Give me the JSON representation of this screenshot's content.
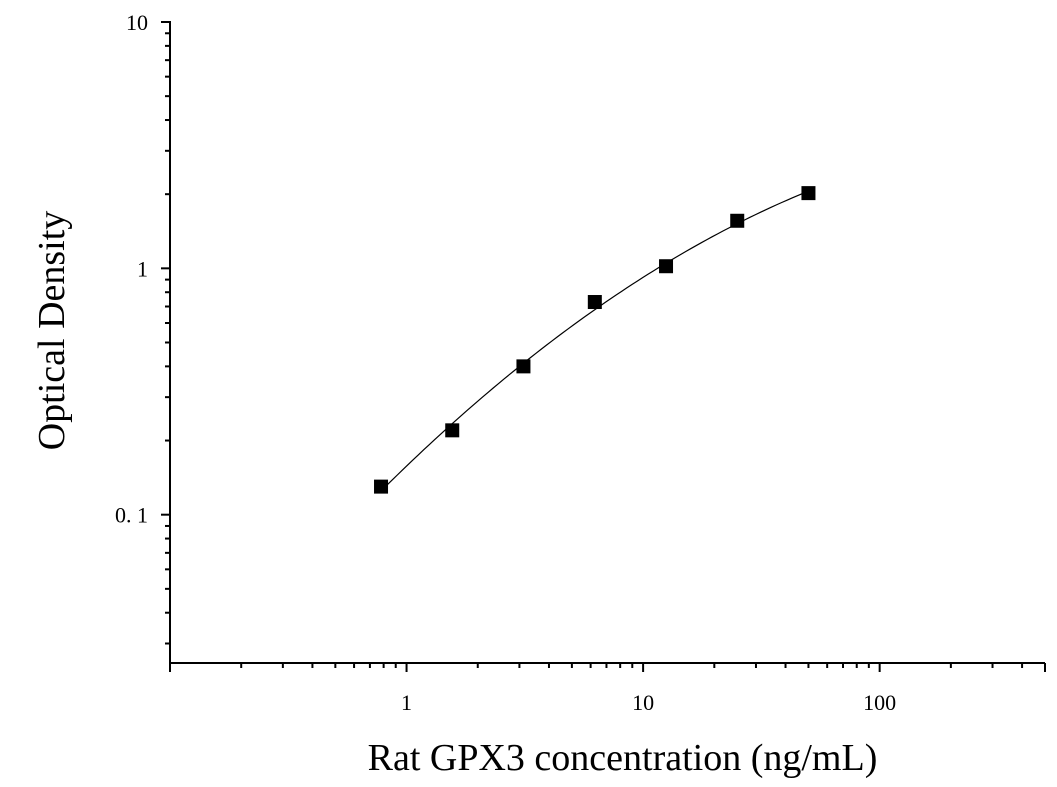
{
  "chart_data": {
    "type": "scatter",
    "title": "",
    "xlabel": "Rat GPX3 concentration (ng/mL)",
    "ylabel": "Optical Density",
    "x_scale": "log",
    "y_scale": "log",
    "xlim": [
      0.1,
      500
    ],
    "ylim": [
      0.025,
      10
    ],
    "x_tick_labels": [
      {
        "value": 1,
        "label": "1"
      },
      {
        "value": 10,
        "label": "10"
      },
      {
        "value": 100,
        "label": "100"
      }
    ],
    "y_tick_labels": [
      {
        "value": 0.1,
        "label": "0. 1"
      },
      {
        "value": 1,
        "label": "1"
      },
      {
        "value": 10,
        "label": "10"
      }
    ],
    "grid": false,
    "legend": false,
    "series": [
      {
        "x": [
          0.78,
          1.56,
          3.12,
          6.25,
          12.5,
          25,
          50
        ],
        "y": [
          0.13,
          0.22,
          0.4,
          0.73,
          1.02,
          1.56,
          2.02
        ],
        "marker": "square",
        "color": "#000000",
        "fit_line": true
      }
    ]
  }
}
